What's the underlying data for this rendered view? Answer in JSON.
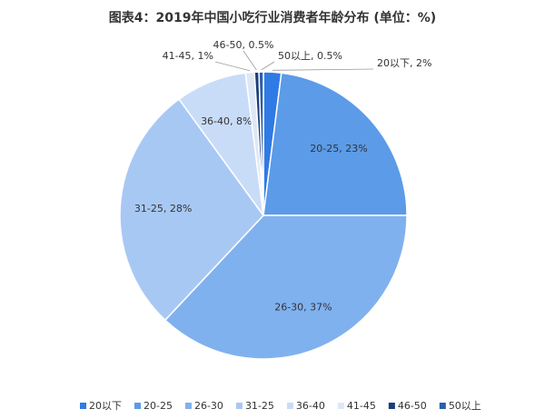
{
  "chart_data": {
    "type": "pie",
    "title": "图表4：2019年中国小吃行业消费者年龄分布 (单位：%)",
    "categories": [
      "20以下",
      "20-25",
      "26-30",
      "31-25",
      "36-40",
      "41-45",
      "46-50",
      "50以上"
    ],
    "values": [
      2,
      23,
      37,
      28,
      8,
      1,
      0.5,
      0.5
    ],
    "value_labels": [
      "20以下, 2%",
      "20-25, 23%",
      "26-30, 37%",
      "31-25, 28%",
      "36-40, 8%",
      "41-45, 1%",
      "46-50, 0.5%",
      "50以上, 0.5%"
    ],
    "colors": [
      "#2f7ae5",
      "#5b9be8",
      "#80b1ef",
      "#a8c8f4",
      "#c8dcf8",
      "#dde8f7",
      "#1c3d78",
      "#2b5dab"
    ],
    "legend": "bottom"
  }
}
